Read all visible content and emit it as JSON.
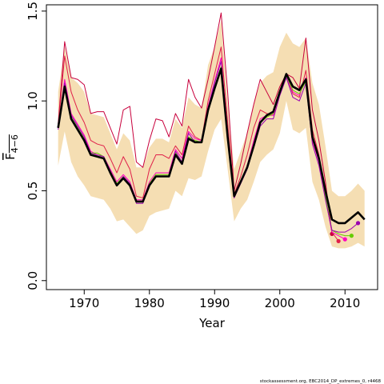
{
  "chart_data": {
    "type": "line",
    "xlabel": "Year",
    "ylabel": {
      "base": "F",
      "sub": "4−6"
    },
    "footnote": "stockassessment.org, EBC2014_DP_extremes_0, r4468",
    "x": [
      1966,
      1967,
      1968,
      1969,
      1970,
      1971,
      1972,
      1973,
      1974,
      1975,
      1976,
      1977,
      1978,
      1979,
      1980,
      1981,
      1982,
      1983,
      1984,
      1985,
      1986,
      1987,
      1988,
      1989,
      1990,
      1991,
      1992,
      1993,
      1994,
      1995,
      1996,
      1997,
      1998,
      1999,
      2000,
      2001,
      2002,
      2003,
      2004,
      2005,
      2006,
      2007,
      2008,
      2009,
      2010,
      2011,
      2012,
      2013
    ],
    "xlim": [
      1964.2,
      2015.0
    ],
    "ylim": [
      -0.05,
      1.535
    ],
    "xticks": [
      1970,
      1980,
      1990,
      2000,
      2010
    ],
    "yticks": [
      {
        "value": 0,
        "label": "0.0"
      },
      {
        "value": 0.5,
        "label": "0.5"
      },
      {
        "value": 1,
        "label": "1.0"
      },
      {
        "value": 1.5,
        "label": "1.5"
      }
    ],
    "band": {
      "color": "#f5deb3",
      "lower": [
        0.64,
        0.83,
        0.66,
        0.58,
        0.53,
        0.47,
        0.46,
        0.45,
        0.4,
        0.33,
        0.34,
        0.3,
        0.26,
        0.28,
        0.36,
        0.38,
        0.39,
        0.4,
        0.5,
        0.47,
        0.57,
        0.56,
        0.58,
        0.72,
        0.84,
        0.9,
        0.62,
        0.33,
        0.4,
        0.45,
        0.55,
        0.66,
        0.7,
        0.73,
        0.82,
        1.0,
        0.84,
        0.82,
        0.85,
        0.55,
        0.45,
        0.3,
        0.19,
        0.18,
        0.18,
        0.19,
        0.21,
        0.19
      ],
      "upper": [
        1.05,
        1.3,
        1.13,
        1.1,
        1.05,
        0.93,
        0.92,
        0.91,
        0.82,
        0.73,
        0.82,
        0.78,
        0.63,
        0.63,
        0.74,
        0.79,
        0.79,
        0.77,
        0.9,
        0.85,
        1.02,
        0.98,
        0.96,
        1.2,
        1.3,
        1.45,
        1.0,
        0.62,
        0.72,
        0.82,
        0.98,
        1.1,
        1.14,
        1.16,
        1.3,
        1.38,
        1.32,
        1.3,
        1.35,
        1.1,
        0.98,
        0.75,
        0.5,
        0.47,
        0.47,
        0.5,
        0.54,
        0.5
      ]
    },
    "series": [
      {
        "color": "#c8003c",
        "values": [
          0.87,
          1.33,
          1.13,
          1.12,
          1.09,
          0.93,
          0.94,
          0.94,
          0.85,
          0.76,
          0.95,
          0.97,
          0.66,
          0.63,
          0.78,
          0.9,
          0.89,
          0.8,
          0.93,
          0.86,
          1.12,
          1.02,
          0.96,
          1.12,
          1.3,
          1.49,
          1.05,
          0.5,
          0.65,
          0.82,
          0.98,
          1.12,
          1.05,
          0.98,
          1.08,
          1.15,
          1.13,
          1.07,
          1.35,
          0.95,
          0.78,
          0.55,
          0.26,
          null,
          null,
          null,
          null,
          null
        ]
      },
      {
        "color": "#e0204a",
        "values": [
          0.86,
          1.25,
          1.05,
          0.95,
          0.88,
          0.78,
          0.76,
          0.75,
          0.68,
          0.6,
          0.69,
          0.62,
          0.47,
          0.46,
          0.62,
          0.7,
          0.7,
          0.68,
          0.75,
          0.7,
          0.86,
          0.8,
          0.78,
          1.0,
          1.15,
          1.3,
          0.88,
          0.48,
          0.58,
          0.7,
          0.85,
          0.95,
          0.93,
          0.92,
          1.04,
          1.14,
          1.04,
          1.02,
          1.17,
          0.84,
          0.7,
          0.46,
          0.27,
          0.22,
          null,
          null,
          null,
          null
        ]
      },
      {
        "color": "#ff00c0",
        "values": [
          0.85,
          1.12,
          0.93,
          0.87,
          0.81,
          0.72,
          0.7,
          0.69,
          0.62,
          0.55,
          0.59,
          0.55,
          0.45,
          0.45,
          0.55,
          0.6,
          0.6,
          0.6,
          0.73,
          0.68,
          0.83,
          0.79,
          0.78,
          0.97,
          1.11,
          1.24,
          0.82,
          0.47,
          0.55,
          0.64,
          0.78,
          0.9,
          0.92,
          0.92,
          1.05,
          1.14,
          1.05,
          1.03,
          1.13,
          0.78,
          0.66,
          0.46,
          0.27,
          0.25,
          0.23,
          null,
          null,
          null
        ]
      },
      {
        "color": "#66cc00",
        "values": [
          0.85,
          1.09,
          0.91,
          0.85,
          0.79,
          0.71,
          0.71,
          0.69,
          0.61,
          0.54,
          0.58,
          0.54,
          0.44,
          0.44,
          0.54,
          0.59,
          0.59,
          0.59,
          0.71,
          0.66,
          0.8,
          0.78,
          0.77,
          0.95,
          1.08,
          1.19,
          0.8,
          0.47,
          0.55,
          0.63,
          0.76,
          0.88,
          0.91,
          0.93,
          1.04,
          1.14,
          1.06,
          1.04,
          1.11,
          0.79,
          0.67,
          0.47,
          0.28,
          0.26,
          0.25,
          0.25,
          null,
          null
        ]
      },
      {
        "color": "#9a00b0",
        "values": [
          0.84,
          1.1,
          0.92,
          0.86,
          0.8,
          0.71,
          0.7,
          0.69,
          0.61,
          0.53,
          0.58,
          0.54,
          0.43,
          0.43,
          0.53,
          0.58,
          0.58,
          0.58,
          0.72,
          0.66,
          0.82,
          0.77,
          0.77,
          0.96,
          1.1,
          1.22,
          0.8,
          0.46,
          0.54,
          0.62,
          0.74,
          0.86,
          0.9,
          0.9,
          1.03,
          1.13,
          1.02,
          1.0,
          1.1,
          0.76,
          0.64,
          0.45,
          0.28,
          0.27,
          0.27,
          0.29,
          0.32,
          null
        ]
      },
      {
        "color": "#000000",
        "main": true,
        "values": [
          0.85,
          1.08,
          0.9,
          0.84,
          0.78,
          0.7,
          0.69,
          0.68,
          0.6,
          0.53,
          0.57,
          0.53,
          0.44,
          0.44,
          0.53,
          0.58,
          0.58,
          0.58,
          0.7,
          0.65,
          0.79,
          0.77,
          0.77,
          0.95,
          1.07,
          1.18,
          0.8,
          0.47,
          0.55,
          0.63,
          0.75,
          0.88,
          0.92,
          0.94,
          1.05,
          1.15,
          1.08,
          1.06,
          1.12,
          0.8,
          0.68,
          0.5,
          0.34,
          0.32,
          0.32,
          0.35,
          0.38,
          0.34
        ]
      }
    ]
  }
}
